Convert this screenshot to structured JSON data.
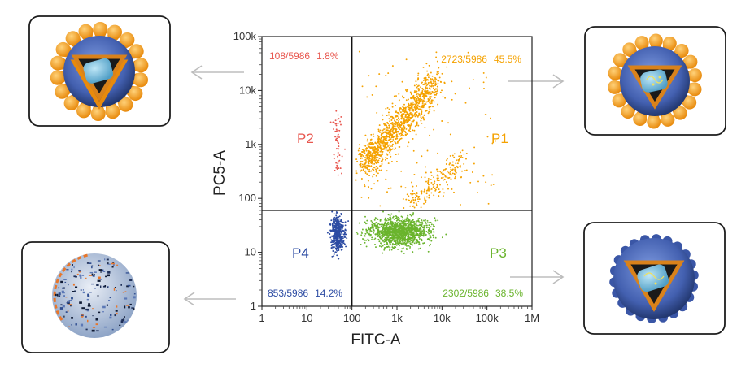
{
  "chart_data": {
    "type": "scatter",
    "title": "",
    "xlabel": "FITC-A",
    "ylabel": "PC5-A",
    "x_scale": "log",
    "y_scale": "log",
    "xlim": [
      1,
      1000000
    ],
    "ylim": [
      1,
      100000
    ],
    "x_ticks": [
      {
        "value": 1,
        "label": "1"
      },
      {
        "value": 10,
        "label": "10"
      },
      {
        "value": 100,
        "label": "100"
      },
      {
        "value": 1000,
        "label": "1k"
      },
      {
        "value": 10000,
        "label": "10k"
      },
      {
        "value": 100000,
        "label": "100k"
      },
      {
        "value": 1000000,
        "label": "1M"
      }
    ],
    "y_ticks": [
      {
        "value": 1,
        "label": "1"
      },
      {
        "value": 10,
        "label": "10"
      },
      {
        "value": 100,
        "label": "100"
      },
      {
        "value": 1000,
        "label": "1k"
      },
      {
        "value": 10000,
        "label": "10k"
      },
      {
        "value": 100000,
        "label": "100k"
      }
    ],
    "gates": {
      "x_threshold": 100,
      "y_threshold": 60
    },
    "total_events": 5986,
    "populations": [
      {
        "name": "P1",
        "count_text": "2723/5986",
        "percent_text": "45.5%",
        "events": 2723,
        "percent": 45.5,
        "color": "#f5a200",
        "quadrant": "upper-right"
      },
      {
        "name": "P2",
        "count_text": "108/5986",
        "percent_text": "1.8%",
        "events": 108,
        "percent": 1.8,
        "color": "#e8574f",
        "quadrant": "upper-left"
      },
      {
        "name": "P3",
        "count_text": "2302/5986",
        "percent_text": "38.5%",
        "events": 2302,
        "percent": 38.5,
        "color": "#6ab42d",
        "quadrant": "lower-right"
      },
      {
        "name": "P4",
        "count_text": "853/5986",
        "percent_text": "14.2%",
        "events": 853,
        "percent": 14.2,
        "color": "#2d4ca3",
        "quadrant": "lower-left"
      }
    ]
  },
  "illustrations": [
    {
      "id": "p1",
      "icon": "mature-virion-spiked-icon"
    },
    {
      "id": "p2",
      "icon": "immature-virion-spiked-icon"
    },
    {
      "id": "p3",
      "icon": "virion-no-spikes-icon"
    },
    {
      "id": "p4",
      "icon": "disrupted-virion-icon"
    }
  ],
  "colors": {
    "arrow": "#bdbdbd",
    "axis": "#222222",
    "frame": "#222222"
  }
}
